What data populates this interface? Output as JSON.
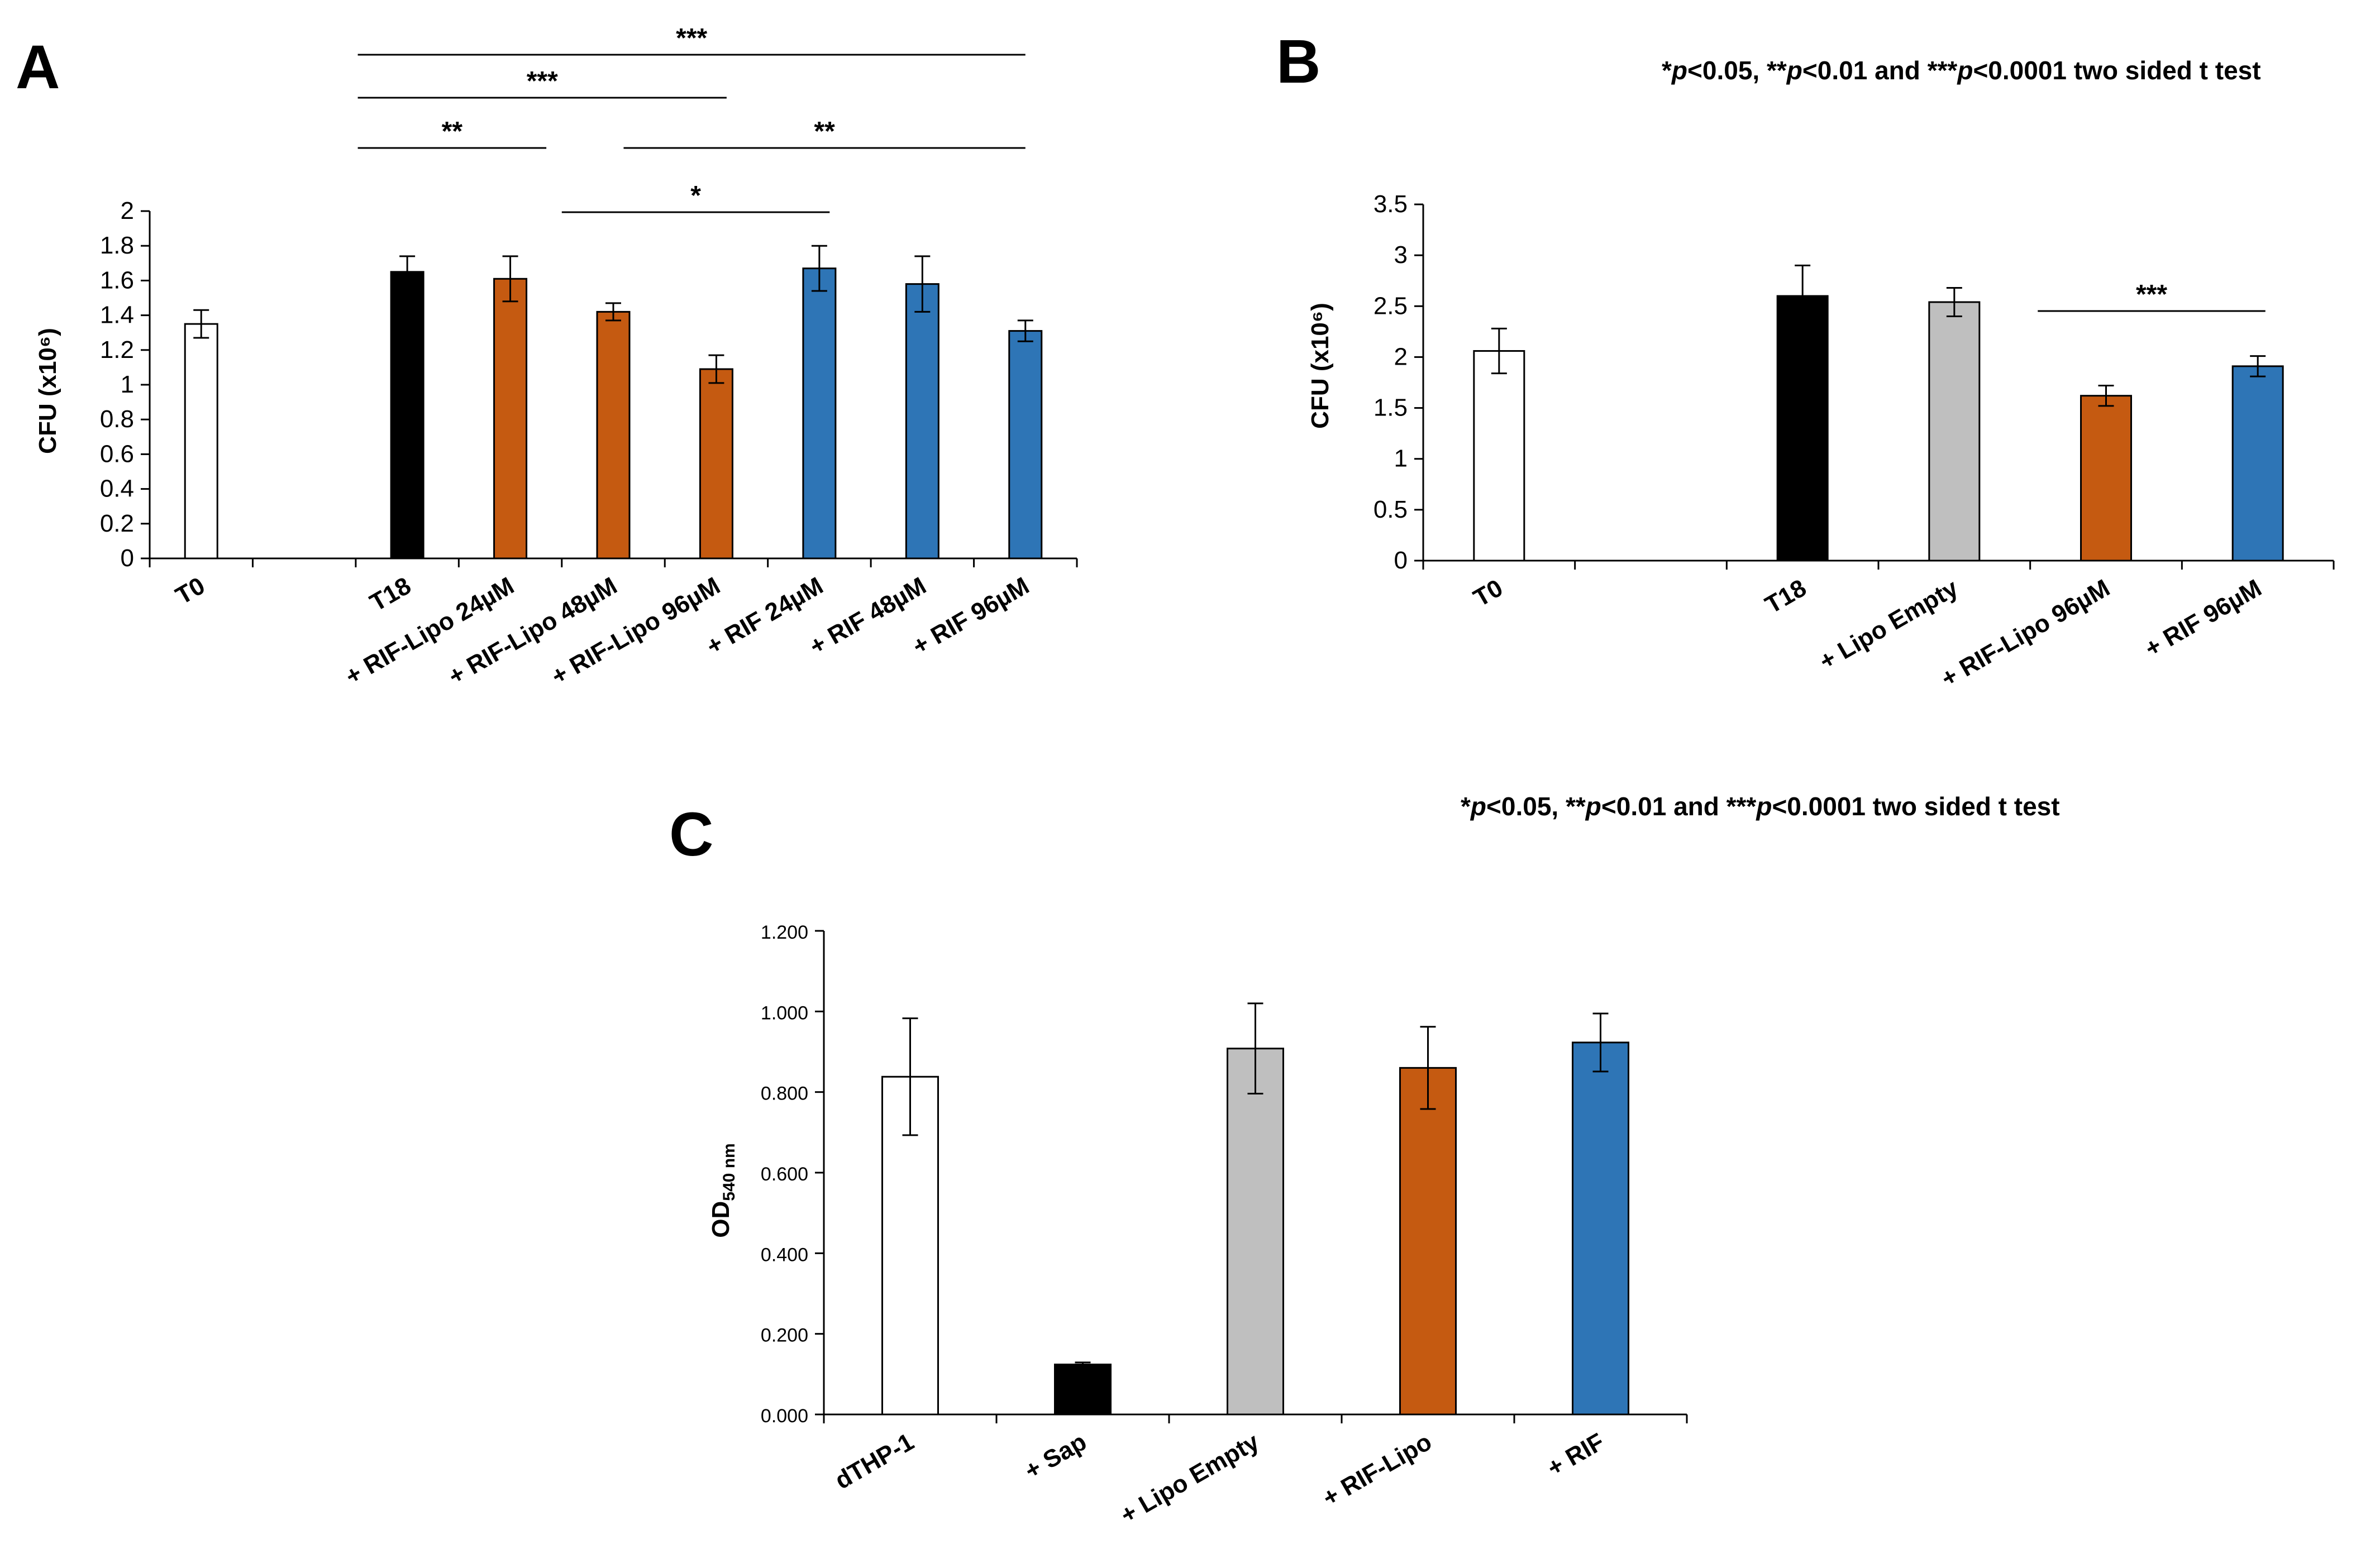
{
  "note": {
    "star1": "*",
    "p1": "p",
    "t1": "<0.05, **",
    "p2": "p",
    "t2": "<0.01 and ***",
    "p3": "p",
    "t3": "<0.0001 two sided t test"
  },
  "chart_data": [
    {
      "panel": "A",
      "type": "bar",
      "ylabel": "CFU (x10⁶)",
      "ylim": [
        0,
        2
      ],
      "yticks": [
        "0",
        "0.2",
        "0.4",
        "0.6",
        "0.8",
        "1",
        "1.2",
        "1.4",
        "1.6",
        "1.8",
        "2"
      ],
      "slots": 9,
      "categories": [
        "T0",
        "T18",
        "+ RIF-Lipo 24µM",
        "+ RIF-Lipo 48µM",
        "+ RIF-Lipo 96µM",
        "+ RIF 24µM",
        "+ RIF 48µM",
        "+ RIF 96µM"
      ],
      "slot_index": [
        0,
        2,
        3,
        4,
        5,
        6,
        7,
        8
      ],
      "values": [
        1.35,
        1.65,
        1.61,
        1.42,
        1.09,
        1.67,
        1.58,
        1.31
      ],
      "errors": [
        0.08,
        0.09,
        0.13,
        0.05,
        0.08,
        0.13,
        0.16,
        0.06
      ],
      "colors": [
        "#ffffff",
        "#000000",
        "#c55a11",
        "#c55a11",
        "#c55a11",
        "#2e75b6",
        "#2e75b6",
        "#2e75b6"
      ],
      "significance": [
        {
          "from": 2,
          "to": 3,
          "label": "**"
        },
        {
          "from": 4,
          "to": 6,
          "label": "*"
        },
        {
          "from": 5,
          "to": 8,
          "label": "**"
        },
        {
          "from": 2,
          "to": 5,
          "label": "***"
        },
        {
          "from": 2,
          "to": 8,
          "label": "***"
        }
      ]
    },
    {
      "panel": "B",
      "type": "bar",
      "ylabel": "CFU (x10⁶)",
      "ylim": [
        0,
        3.5
      ],
      "yticks": [
        "0",
        "0.5",
        "1",
        "1.5",
        "2",
        "2.5",
        "3",
        "3.5"
      ],
      "slots": 6,
      "categories": [
        "T0",
        "T18",
        "+ Lipo Empty",
        "+ RIF-Lipo 96µM",
        "+ RIF 96µM"
      ],
      "slot_index": [
        0,
        2,
        3,
        4,
        5
      ],
      "values": [
        2.06,
        2.6,
        2.54,
        1.62,
        1.91
      ],
      "errors": [
        0.22,
        0.3,
        0.14,
        0.1,
        0.1
      ],
      "colors": [
        "#ffffff",
        "#000000",
        "#bfbfbf",
        "#c55a11",
        "#2e75b6"
      ],
      "significance": [
        {
          "from": 4,
          "to": 5,
          "label": "***"
        }
      ]
    },
    {
      "panel": "C",
      "type": "bar",
      "ylabel_main": "OD",
      "ylabel_sub": "540 nm",
      "ylim": [
        0,
        1.2
      ],
      "yticks": [
        "0.000",
        "0.200",
        "0.400",
        "0.600",
        "0.800",
        "1.000",
        "1.200"
      ],
      "slots": 5,
      "categories": [
        "dTHP-1",
        "+ Sap",
        "+ Lipo Empty",
        "+ RIF-Lipo",
        "+ RIF"
      ],
      "slot_index": [
        0,
        1,
        2,
        3,
        4
      ],
      "values": [
        0.838,
        0.124,
        0.908,
        0.86,
        0.923
      ],
      "errors": [
        0.145,
        0.005,
        0.112,
        0.102,
        0.072
      ],
      "colors": [
        "#ffffff",
        "#000000",
        "#bfbfbf",
        "#c55a11",
        "#2e75b6"
      ],
      "significance": []
    }
  ]
}
